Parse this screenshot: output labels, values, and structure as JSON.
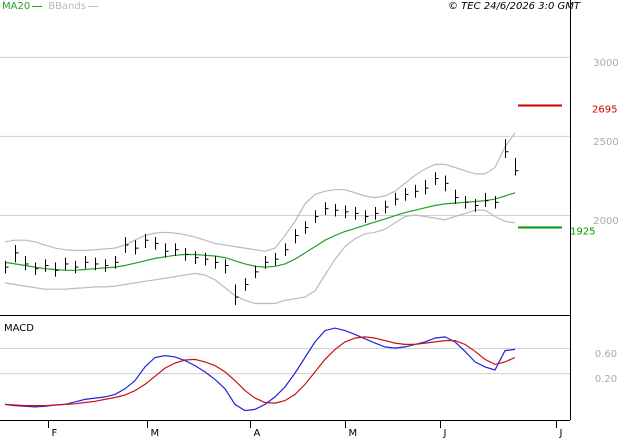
{
  "chart_data": [
    {
      "type": "ohlc",
      "source": "© TEC 24/6/2026 3:0 GMT",
      "high": [
        1710,
        1810,
        1740,
        1700,
        1720,
        1700,
        1730,
        1710,
        1740,
        1730,
        1720,
        1740,
        1860,
        1840,
        1880,
        1860,
        1820,
        1820,
        1790,
        1770,
        1760,
        1740,
        1720,
        1560,
        1600,
        1680,
        1740,
        1760,
        1820,
        1910,
        1960,
        2030,
        2080,
        2070,
        2060,
        2050,
        2030,
        2050,
        2090,
        2140,
        2170,
        2190,
        2220,
        2270,
        2250,
        2160,
        2120,
        2100,
        2140,
        2120,
        2480,
        2360
      ],
      "low": [
        1630,
        1700,
        1650,
        1620,
        1640,
        1610,
        1650,
        1630,
        1660,
        1650,
        1640,
        1660,
        1760,
        1750,
        1790,
        1780,
        1730,
        1740,
        1710,
        1690,
        1680,
        1660,
        1630,
        1430,
        1520,
        1600,
        1660,
        1680,
        1740,
        1820,
        1880,
        1950,
        2000,
        1990,
        1980,
        1970,
        1950,
        1970,
        2010,
        2060,
        2090,
        2110,
        2130,
        2190,
        2150,
        2070,
        2040,
        2020,
        2050,
        2040,
        2360,
        2250
      ],
      "close": [
        1670,
        1760,
        1690,
        1660,
        1680,
        1650,
        1690,
        1670,
        1700,
        1690,
        1680,
        1700,
        1810,
        1790,
        1840,
        1820,
        1770,
        1780,
        1750,
        1730,
        1720,
        1700,
        1680,
        1480,
        1560,
        1640,
        1700,
        1720,
        1780,
        1870,
        1920,
        1990,
        2040,
        2030,
        2020,
        2010,
        1990,
        2010,
        2050,
        2100,
        2130,
        2150,
        2170,
        2230,
        2200,
        2110,
        2080,
        2060,
        2090,
        2080,
        2400,
        2280
      ],
      "color": "#000000",
      "series": [
        {
          "name": "MA20",
          "color": "#22a022",
          "values": [
            1700,
            1690,
            1680,
            1670,
            1660,
            1655,
            1650,
            1650,
            1655,
            1660,
            1665,
            1670,
            1680,
            1695,
            1710,
            1725,
            1735,
            1745,
            1750,
            1750,
            1745,
            1740,
            1730,
            1710,
            1690,
            1675,
            1670,
            1675,
            1690,
            1720,
            1760,
            1800,
            1840,
            1870,
            1895,
            1915,
            1935,
            1955,
            1975,
            1995,
            2015,
            2030,
            2045,
            2060,
            2070,
            2075,
            2080,
            2085,
            2090,
            2100,
            2120,
            2140
          ]
        },
        {
          "name": "BBands",
          "color": "#bbbbbb",
          "upper": [
            1830,
            1840,
            1840,
            1830,
            1810,
            1790,
            1780,
            1775,
            1775,
            1780,
            1785,
            1790,
            1810,
            1840,
            1870,
            1885,
            1890,
            1885,
            1875,
            1860,
            1840,
            1820,
            1810,
            1800,
            1790,
            1780,
            1770,
            1790,
            1870,
            1960,
            2070,
            2130,
            2150,
            2160,
            2160,
            2140,
            2120,
            2110,
            2120,
            2150,
            2200,
            2250,
            2290,
            2320,
            2320,
            2300,
            2280,
            2260,
            2260,
            2300,
            2430,
            2520
          ],
          "lower": [
            1570,
            1560,
            1550,
            1540,
            1530,
            1530,
            1530,
            1535,
            1540,
            1545,
            1545,
            1550,
            1560,
            1570,
            1580,
            1590,
            1600,
            1610,
            1620,
            1630,
            1620,
            1590,
            1540,
            1490,
            1460,
            1440,
            1440,
            1440,
            1460,
            1470,
            1480,
            1520,
            1620,
            1720,
            1800,
            1850,
            1880,
            1890,
            1910,
            1950,
            1990,
            2000,
            1990,
            1980,
            1970,
            1990,
            2010,
            2030,
            2030,
            1990,
            1960,
            1950
          ]
        }
      ],
      "levels": [
        {
          "value": 2695,
          "color": "#cc0000"
        },
        {
          "value": 1925,
          "color": "#009900"
        }
      ],
      "ylim": [
        1367,
        3360
      ],
      "yticks": [
        2000,
        2500,
        3000
      ],
      "grid": true,
      "xlim": [
        -0.5,
        56.5
      ]
    },
    {
      "type": "line",
      "title": "MACD",
      "series": [
        {
          "color": "#2222dd",
          "values": [
            -0.3,
            -0.32,
            -0.33,
            -0.34,
            -0.33,
            -0.31,
            -0.3,
            -0.26,
            -0.22,
            -0.2,
            -0.18,
            -0.14,
            -0.05,
            0.08,
            0.3,
            0.45,
            0.48,
            0.46,
            0.4,
            0.32,
            0.22,
            0.1,
            -0.05,
            -0.3,
            -0.4,
            -0.38,
            -0.3,
            -0.18,
            -0.02,
            0.2,
            0.45,
            0.7,
            0.88,
            0.92,
            0.88,
            0.82,
            0.75,
            0.68,
            0.62,
            0.6,
            0.62,
            0.66,
            0.7,
            0.76,
            0.78,
            0.7,
            0.55,
            0.38,
            0.3,
            0.25,
            0.56,
            0.58
          ]
        },
        {
          "color": "#cc1111",
          "values": [
            -0.3,
            -0.31,
            -0.32,
            -0.32,
            -0.32,
            -0.31,
            -0.3,
            -0.29,
            -0.27,
            -0.25,
            -0.22,
            -0.19,
            -0.15,
            -0.08,
            0.02,
            0.15,
            0.28,
            0.36,
            0.41,
            0.42,
            0.38,
            0.32,
            0.22,
            0.08,
            -0.08,
            -0.2,
            -0.27,
            -0.28,
            -0.24,
            -0.14,
            0.02,
            0.22,
            0.42,
            0.58,
            0.7,
            0.76,
            0.78,
            0.76,
            0.72,
            0.68,
            0.66,
            0.66,
            0.68,
            0.7,
            0.72,
            0.72,
            0.66,
            0.55,
            0.42,
            0.34,
            0.38,
            0.45
          ]
        }
      ],
      "ylim": [
        -0.55,
        1.13
      ],
      "yticks": [
        {
          "value": 0.2,
          "label": "0.20"
        },
        {
          "value": 0.6,
          "label": "0.60"
        }
      ],
      "grid": true,
      "xlim": [
        -0.5,
        56.5
      ],
      "xticks": [
        {
          "value": 4.3,
          "label": "F"
        },
        {
          "value": 14.2,
          "label": "M"
        },
        {
          "value": 24.5,
          "label": "A"
        },
        {
          "value": 34,
          "label": "M"
        },
        {
          "value": 43.5,
          "label": "J"
        },
        {
          "value": 55.1,
          "label": "J"
        }
      ]
    }
  ]
}
